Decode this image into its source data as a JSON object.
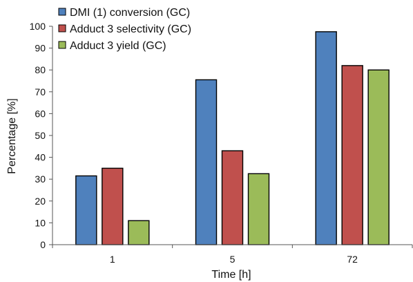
{
  "chart_data": {
    "type": "bar",
    "title": "",
    "xlabel": "Time [h]",
    "ylabel": "Percentage [%]",
    "categories": [
      "1",
      "5",
      "72"
    ],
    "ylim": [
      0,
      100
    ],
    "yticks": [
      0,
      10,
      20,
      30,
      40,
      50,
      60,
      70,
      80,
      90,
      100
    ],
    "grid": false,
    "legend_position": "top-left",
    "series": [
      {
        "name": "DMI (1) conversion (GC)",
        "color": "#4f81bd",
        "values": [
          31.5,
          75.5,
          97.5
        ]
      },
      {
        "name": "Adduct 3 selectivity (GC)",
        "color": "#c0504d",
        "values": [
          35,
          43,
          82
        ]
      },
      {
        "name": "Adduct 3 yield (GC)",
        "color": "#9bbb59",
        "values": [
          11,
          32.5,
          80
        ]
      }
    ]
  }
}
